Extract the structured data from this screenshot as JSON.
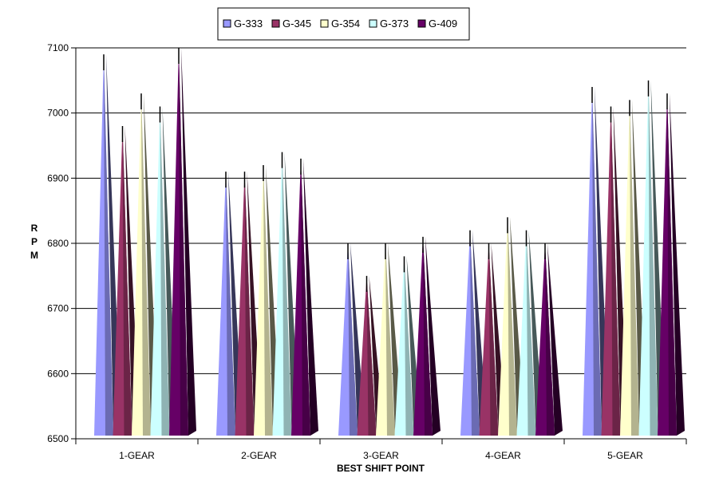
{
  "chart_data": {
    "type": "bar",
    "bar_shape": "pyramid-3d",
    "title": "",
    "xlabel": "BEST SHIFT POINT",
    "ylabel": "R P M",
    "categories": [
      "1-GEAR",
      "2-GEAR",
      "3-GEAR",
      "4-GEAR",
      "5-GEAR"
    ],
    "series": [
      {
        "name": "G-333",
        "color": "#9999FF",
        "values": [
          7090,
          6910,
          6800,
          6820,
          7040
        ]
      },
      {
        "name": "G-345",
        "color": "#993366",
        "values": [
          6980,
          6910,
          6750,
          6800,
          7010
        ]
      },
      {
        "name": "G-354",
        "color": "#FFFFCC",
        "values": [
          7030,
          6920,
          6800,
          6840,
          7020
        ]
      },
      {
        "name": "G-373",
        "color": "#CCFFFF",
        "values": [
          7010,
          6940,
          6780,
          6820,
          7050
        ]
      },
      {
        "name": "G-409",
        "color": "#660066",
        "values": [
          7100,
          6930,
          6810,
          6800,
          7030
        ]
      }
    ],
    "ylim": [
      6500,
      7100
    ],
    "yticks": [
      6500,
      6600,
      6700,
      6800,
      6900,
      7000,
      7100
    ],
    "grid": true,
    "legend_position": "top"
  }
}
